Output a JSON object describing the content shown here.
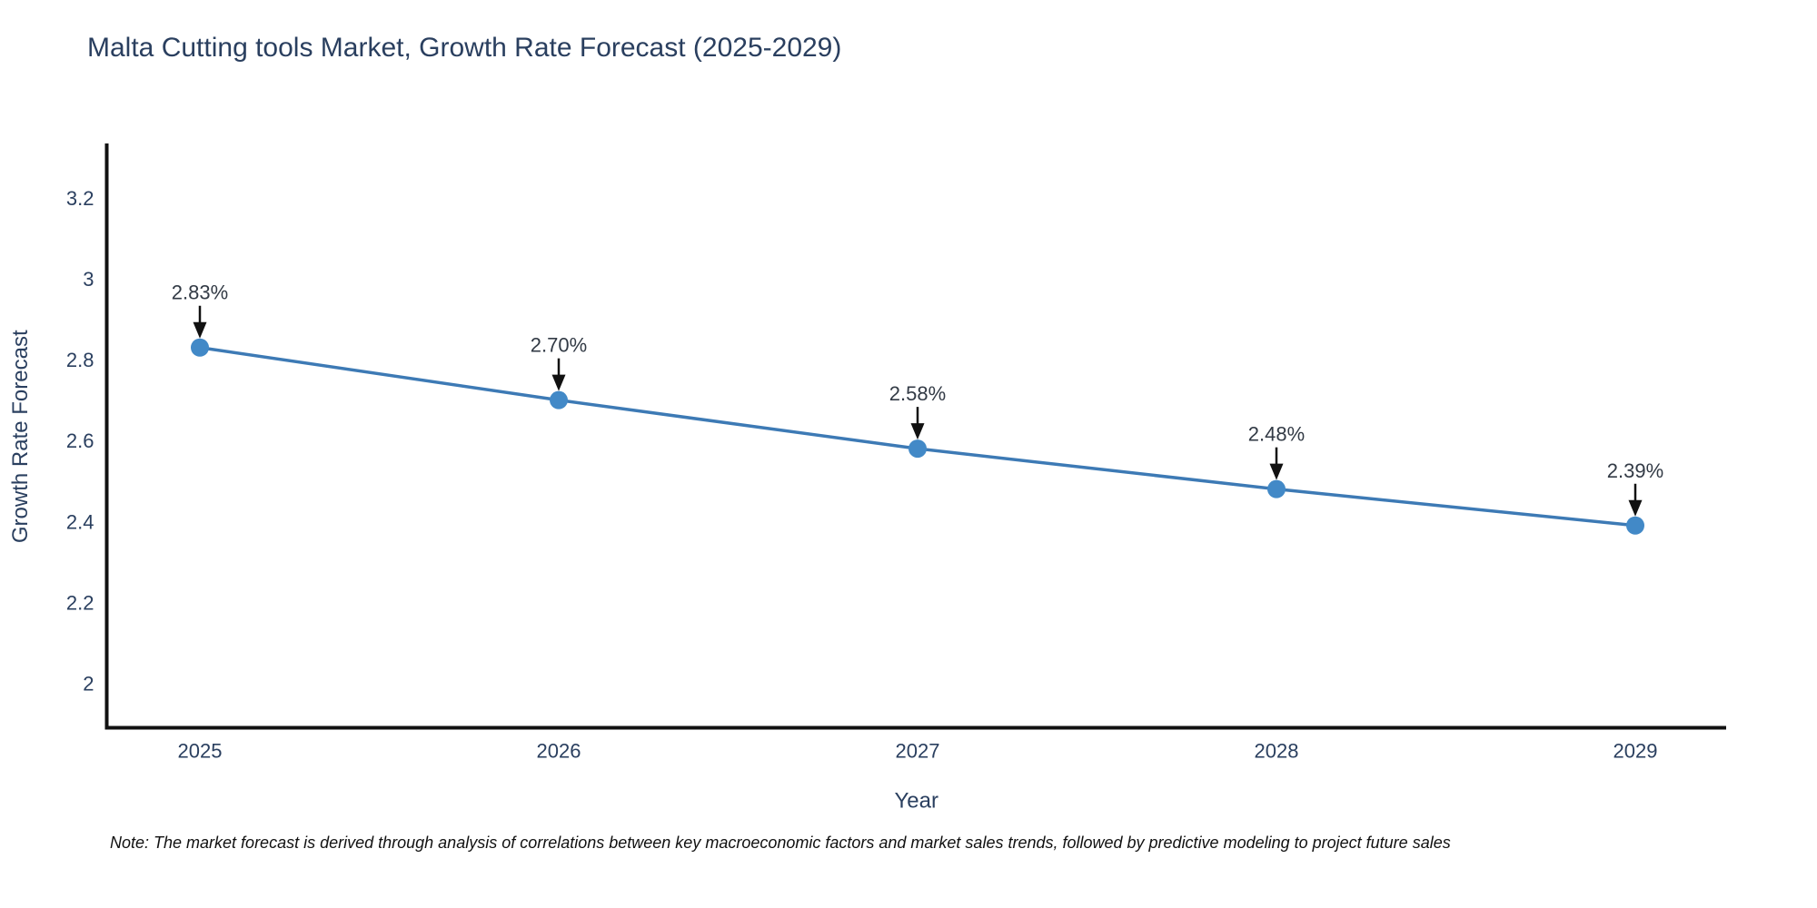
{
  "title": "Malta Cutting tools Market, Growth Rate Forecast (2025-2029)",
  "note": "Note: The market forecast is derived through analysis of correlations between key macroeconomic factors and market sales trends, followed by predictive modeling to project future sales",
  "chart_data": {
    "type": "line",
    "title": "Malta Cutting tools Market, Growth Rate Forecast (2025-2029)",
    "x": [
      "2025",
      "2026",
      "2027",
      "2028",
      "2029"
    ],
    "values": [
      2.83,
      2.7,
      2.58,
      2.48,
      2.39
    ],
    "point_labels": [
      "2.83%",
      "2.70%",
      "2.58%",
      "2.48%",
      "2.39%"
    ],
    "xlabel": "Year",
    "ylabel": "Growth Rate Forecast",
    "ytick_values": [
      2,
      2.2,
      2.4,
      2.6,
      2.8,
      3,
      3.2
    ],
    "ytick_labels": [
      "2",
      "2.2",
      "2.4",
      "2.6",
      "2.8",
      "3",
      "3.2"
    ],
    "ylim": [
      1.89,
      3.33
    ],
    "grid": false,
    "legend": false,
    "annotations": "black downward arrows from each percentage label to its data point",
    "colors": {
      "line": "#3d7ab5",
      "marker": "#4289c7",
      "axis": "#111111",
      "tick_text": "#2a3f5f",
      "axis_title_text": "#2a3f5f",
      "annotation_text": "#323a45",
      "arrow": "#111111"
    }
  }
}
